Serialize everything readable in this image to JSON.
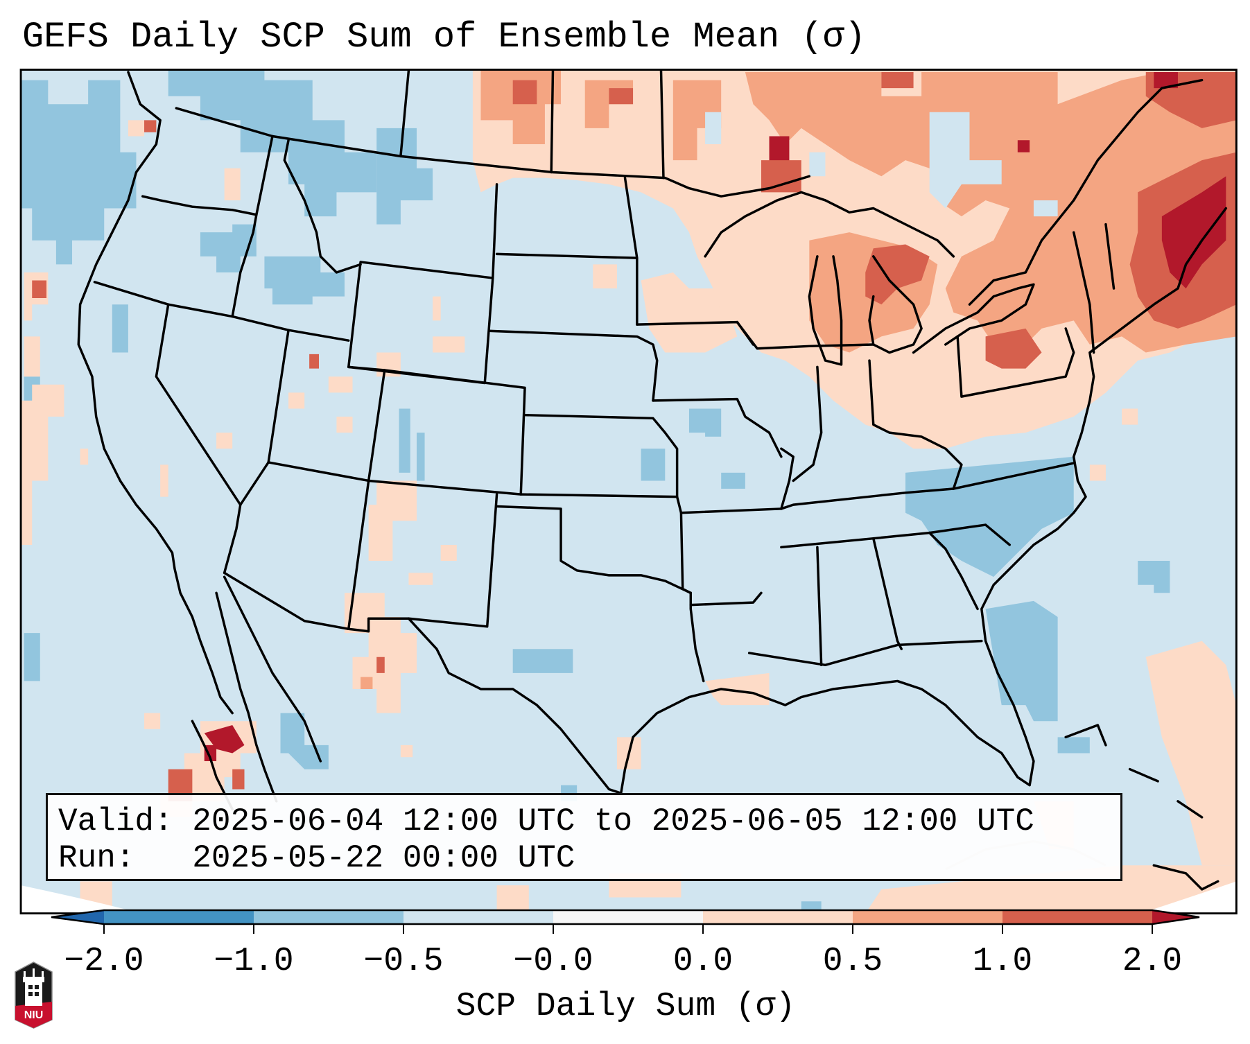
{
  "title": "GEFS Daily SCP Sum of Ensemble Mean (σ)",
  "info_box": {
    "valid_line": "Valid: 2025-06-04 12:00 UTC to 2025-06-05 12:00 UTC",
    "run_line": "Run:   2025-05-22 00:00 UTC"
  },
  "colorbar": {
    "label": "SCP Daily Sum (σ)",
    "ticks": [
      "−2.0",
      "−1.0",
      "−0.5",
      "−0.0",
      "0.0",
      "0.5",
      "1.0",
      "2.0"
    ],
    "bins": [
      {
        "range": "< -2.0",
        "color": "#2166ac"
      },
      {
        "range": "-2.0 to -1.0",
        "color": "#4393c3"
      },
      {
        "range": "-1.0 to -0.5",
        "color": "#92c5de"
      },
      {
        "range": "-0.5 to -0.0",
        "color": "#d1e5f0"
      },
      {
        "range": "-0.0 to 0.0",
        "color": "#f7f7f7"
      },
      {
        "range": "0.0 to 0.5",
        "color": "#fddbc7"
      },
      {
        "range": "0.5 to 1.0",
        "color": "#f4a582"
      },
      {
        "range": "1.0 to 2.0",
        "color": "#d6604d"
      },
      {
        "range": "> 2.0",
        "color": "#b2182b"
      }
    ],
    "extend": "both"
  },
  "logo": {
    "text": "NIU"
  },
  "colors": {
    "background_field": "#d1e5f0",
    "outline": "#000000"
  }
}
